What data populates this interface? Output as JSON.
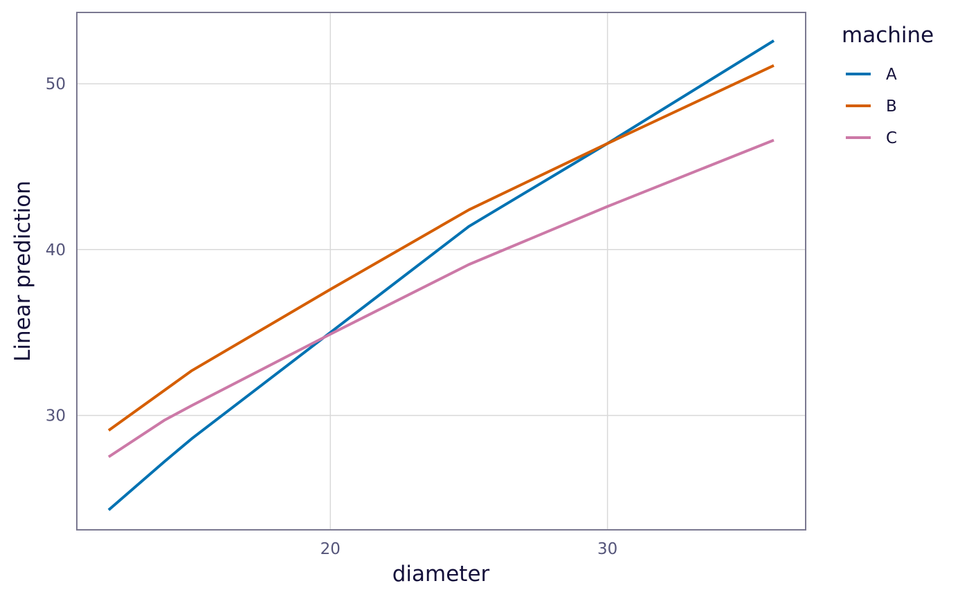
{
  "chart_data": {
    "type": "line",
    "xlabel": "diameter",
    "ylabel": "Linear prediction",
    "xlim": [
      10.85,
      37.15
    ],
    "ylim": [
      23.1,
      54.3
    ],
    "x_ticks": [
      20,
      30
    ],
    "y_ticks": [
      30,
      40,
      50
    ],
    "grid": true,
    "legend": {
      "title": "machine",
      "position": "right"
    },
    "series": [
      {
        "name": "A",
        "color": "#0072B2",
        "x": [
          12,
          14,
          15,
          20,
          25,
          30,
          36
        ],
        "y": [
          24.3,
          27.2,
          28.6,
          35.0,
          41.4,
          46.4,
          52.6
        ]
      },
      {
        "name": "B",
        "color": "#D55E00",
        "x": [
          12,
          14,
          15,
          20,
          25,
          30,
          36
        ],
        "y": [
          29.1,
          31.5,
          32.7,
          37.6,
          42.4,
          46.4,
          51.1
        ]
      },
      {
        "name": "C",
        "color": "#CC79A7",
        "x": [
          12,
          14,
          15,
          20,
          25,
          30,
          36
        ],
        "y": [
          27.5,
          29.7,
          30.6,
          34.9,
          39.1,
          42.6,
          46.6
        ]
      }
    ]
  }
}
